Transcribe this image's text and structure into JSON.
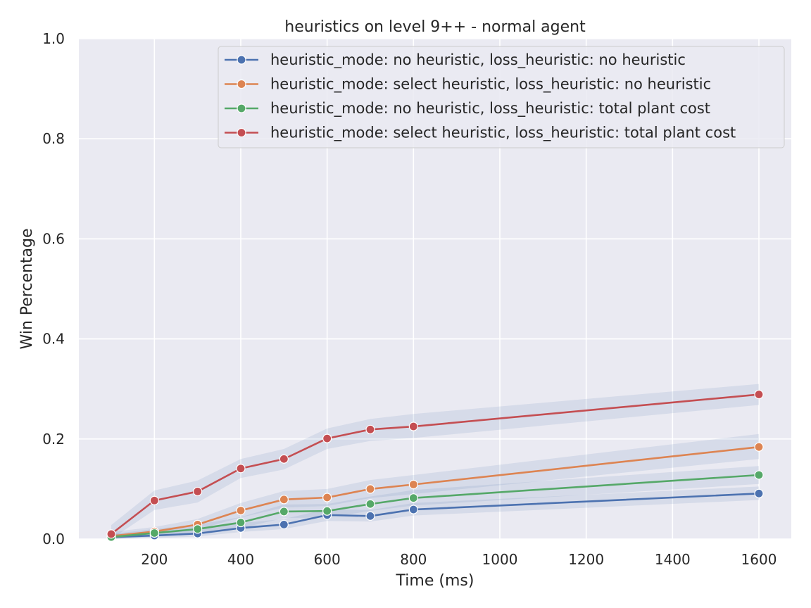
{
  "chart_data": {
    "type": "line",
    "title": "heuristics on level 9++ - normal agent",
    "xlabel": "Time (ms)",
    "ylabel": "Win Percentage",
    "xlim": [
      25,
      1675
    ],
    "ylim": [
      0,
      1.0
    ],
    "xticks": [
      200,
      400,
      600,
      800,
      1000,
      1200,
      1400,
      1600
    ],
    "xtick_labels": [
      "200",
      "400",
      "600",
      "800",
      "1000",
      "1200",
      "1400",
      "1600"
    ],
    "yticks": [
      0.0,
      0.2,
      0.4,
      0.6,
      0.8,
      1.0
    ],
    "ytick_labels": [
      "0.0",
      "0.2",
      "0.4",
      "0.6",
      "0.8",
      "1.0"
    ],
    "grid": true,
    "legend_position": "top-right",
    "x": [
      100,
      200,
      300,
      400,
      500,
      600,
      700,
      800,
      1600
    ],
    "series": [
      {
        "name": "heuristic_mode: no heuristic, loss_heuristic: no heuristic",
        "color": "#4c72b0",
        "values": [
          0.004,
          0.007,
          0.011,
          0.022,
          0.029,
          0.048,
          0.046,
          0.059,
          0.091
        ],
        "ci_low": [
          0.0,
          0.002,
          0.005,
          0.014,
          0.02,
          0.036,
          0.035,
          0.047,
          0.078
        ],
        "ci_high": [
          0.01,
          0.014,
          0.019,
          0.032,
          0.04,
          0.06,
          0.058,
          0.072,
          0.105
        ]
      },
      {
        "name": "heuristic_mode: select heuristic, loss_heuristic: no heuristic",
        "color": "#dd8452",
        "values": [
          0.006,
          0.015,
          0.029,
          0.057,
          0.079,
          0.083,
          0.1,
          0.109,
          0.184
        ],
        "ci_low": [
          0.0,
          0.007,
          0.019,
          0.043,
          0.063,
          0.066,
          0.082,
          0.09,
          0.16
        ],
        "ci_high": [
          0.014,
          0.024,
          0.04,
          0.072,
          0.096,
          0.1,
          0.118,
          0.128,
          0.21
        ]
      },
      {
        "name": "heuristic_mode: no heuristic, loss_heuristic: total plant cost",
        "color": "#55a868",
        "values": [
          0.004,
          0.012,
          0.02,
          0.033,
          0.055,
          0.056,
          0.07,
          0.082,
          0.128
        ],
        "ci_low": [
          0.0,
          0.005,
          0.012,
          0.022,
          0.042,
          0.043,
          0.056,
          0.067,
          0.11
        ],
        "ci_high": [
          0.01,
          0.02,
          0.029,
          0.044,
          0.069,
          0.07,
          0.085,
          0.098,
          0.146
        ]
      },
      {
        "name": "heuristic_mode: select heuristic, loss_heuristic: total plant cost",
        "color": "#c44e52",
        "values": [
          0.01,
          0.077,
          0.095,
          0.141,
          0.16,
          0.201,
          0.219,
          0.225,
          0.289
        ],
        "ci_low": [
          0.0,
          0.058,
          0.073,
          0.122,
          0.139,
          0.18,
          0.196,
          0.202,
          0.268
        ],
        "ci_high": [
          0.028,
          0.097,
          0.117,
          0.16,
          0.18,
          0.221,
          0.24,
          0.25,
          0.31
        ]
      }
    ]
  }
}
